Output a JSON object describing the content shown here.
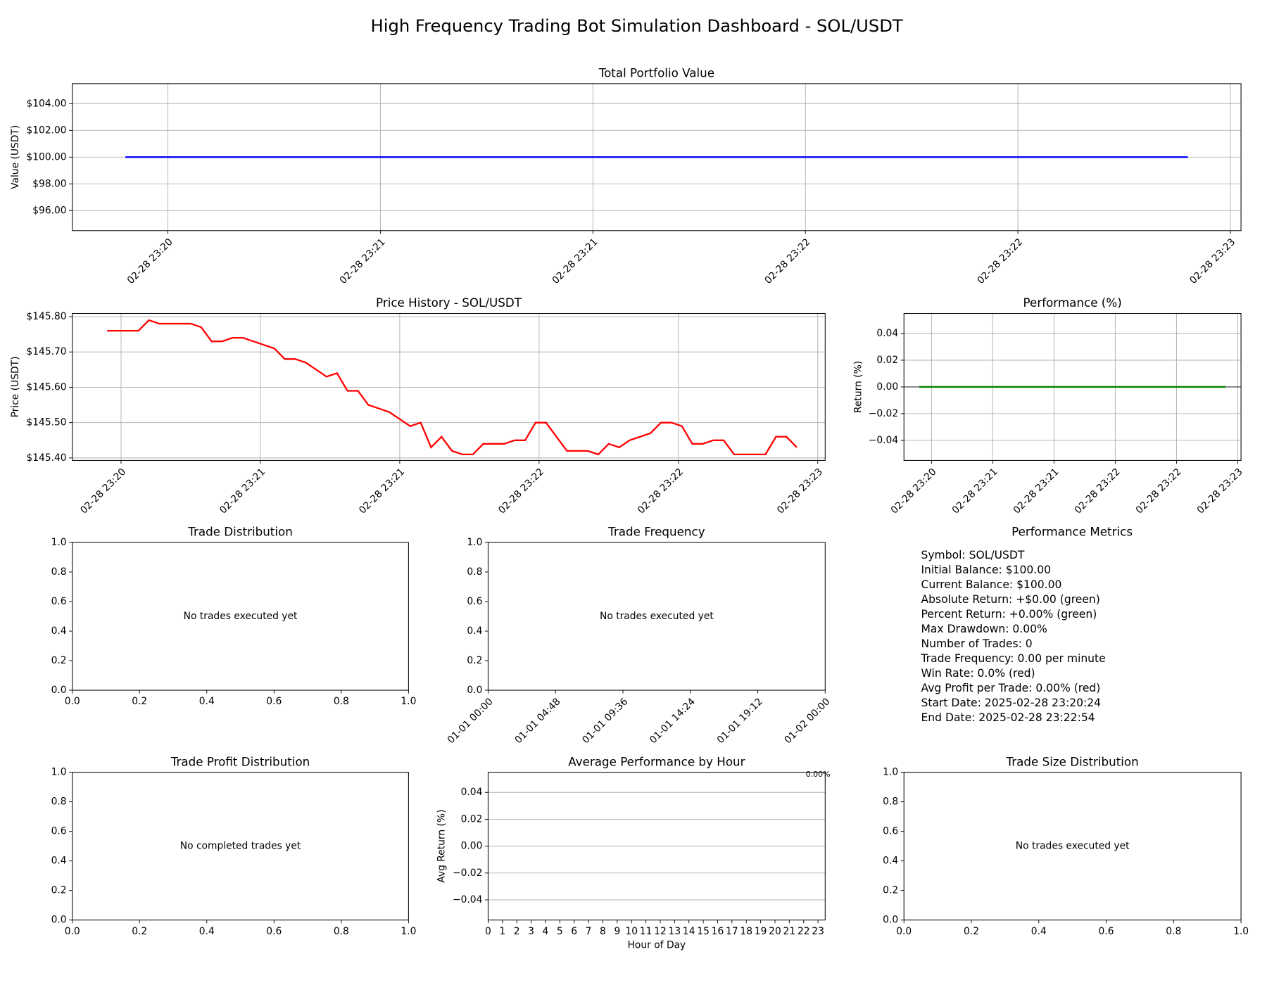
{
  "title": "High Frequency Trading Bot Simulation Dashboard - SOL/USDT",
  "chart_data": [
    {
      "type": "line",
      "title": "Total Portfolio Value",
      "ylabel": "Value (USDT)",
      "x": [
        "02-28 23:20:24",
        "02-28 23:22:54"
      ],
      "values": [
        100,
        100
      ],
      "color": "#0000ff",
      "xlim": [
        "02-28 23:20:16.5",
        "02-28 23:23:01.5"
      ],
      "ylim": [
        94.5,
        105.5
      ],
      "xticks": [
        {
          "value": "02-28 23:20:30",
          "label": "02-28 23:20"
        },
        {
          "value": "02-28 23:21:00",
          "label": "02-28 23:21"
        },
        {
          "value": "02-28 23:21:30",
          "label": "02-28 23:21"
        },
        {
          "value": "02-28 23:22:00",
          "label": "02-28 23:22"
        },
        {
          "value": "02-28 23:22:30",
          "label": "02-28 23:22"
        },
        {
          "value": "02-28 23:23:00",
          "label": "02-28 23:23"
        }
      ],
      "yticks": [
        {
          "value": 96,
          "label": "$96.00"
        },
        {
          "value": 98,
          "label": "$98.00"
        },
        {
          "value": 100,
          "label": "$100.00"
        },
        {
          "value": 102,
          "label": "$102.00"
        },
        {
          "value": 104,
          "label": "$104.00"
        }
      ],
      "xtick_rotation": 45,
      "grid": true
    },
    {
      "type": "line",
      "title": "Price History - SOL/USDT",
      "ylabel": "Price (USDT)",
      "x": [
        "02-28 23:20:27",
        "02-28 23:20:29.25",
        "02-28 23:20:31.5",
        "02-28 23:20:33.75",
        "02-28 23:20:36",
        "02-28 23:20:38.25",
        "02-28 23:20:40.5",
        "02-28 23:20:42.75",
        "02-28 23:20:45",
        "02-28 23:20:47.25",
        "02-28 23:20:49.5",
        "02-28 23:20:51.75",
        "02-28 23:20:54",
        "02-28 23:20:56.25",
        "02-28 23:20:58.5",
        "02-28 23:21:00.75",
        "02-28 23:21:03",
        "02-28 23:21:05.25",
        "02-28 23:21:07.5",
        "02-28 23:21:09.75",
        "02-28 23:21:12",
        "02-28 23:21:14.25",
        "02-28 23:21:16.5",
        "02-28 23:21:18.75",
        "02-28 23:21:21",
        "02-28 23:21:23.25",
        "02-28 23:21:25.5",
        "02-28 23:21:27.75",
        "02-28 23:21:30",
        "02-28 23:21:32.25",
        "02-28 23:21:34.5",
        "02-28 23:21:36.75",
        "02-28 23:21:39",
        "02-28 23:21:41.25",
        "02-28 23:21:43.5",
        "02-28 23:21:45.75",
        "02-28 23:21:48",
        "02-28 23:21:50.25",
        "02-28 23:21:52.5",
        "02-28 23:21:54.75",
        "02-28 23:21:57",
        "02-28 23:21:59.25",
        "02-28 23:22:01.5",
        "02-28 23:22:03.75",
        "02-28 23:22:06",
        "02-28 23:22:08.25",
        "02-28 23:22:10.5",
        "02-28 23:22:12.75",
        "02-28 23:22:15",
        "02-28 23:22:17.25",
        "02-28 23:22:19.5",
        "02-28 23:22:21.75",
        "02-28 23:22:24",
        "02-28 23:22:26.25",
        "02-28 23:22:28.5",
        "02-28 23:22:30.75",
        "02-28 23:22:33",
        "02-28 23:22:35.25",
        "02-28 23:22:37.5",
        "02-28 23:22:39.75",
        "02-28 23:22:42",
        "02-28 23:22:44.25",
        "02-28 23:22:46.5",
        "02-28 23:22:48.75",
        "02-28 23:22:51",
        "02-28 23:22:53.25",
        "02-28 23:22:55.5"
      ],
      "values": [
        145.76,
        145.76,
        145.76,
        145.76,
        145.79,
        145.78,
        145.78,
        145.78,
        145.78,
        145.77,
        145.73,
        145.73,
        145.74,
        145.74,
        145.73,
        145.72,
        145.71,
        145.68,
        145.68,
        145.67,
        145.65,
        145.63,
        145.64,
        145.59,
        145.59,
        145.55,
        145.54,
        145.53,
        145.51,
        145.49,
        145.5,
        145.43,
        145.46,
        145.42,
        145.41,
        145.41,
        145.44,
        145.44,
        145.44,
        145.45,
        145.45,
        145.5,
        145.5,
        145.46,
        145.42,
        145.42,
        145.42,
        145.41,
        145.44,
        145.43,
        145.45,
        145.46,
        145.47,
        145.5,
        145.5,
        145.49,
        145.44,
        145.44,
        145.45,
        145.45,
        145.41,
        145.41,
        145.41,
        145.41,
        145.46,
        145.46,
        145.43
      ],
      "color": "#ff0000",
      "xlim": [
        "02-28 23:20:19.5",
        "02-28 23:23:01.6"
      ],
      "ylim": [
        145.393,
        145.809
      ],
      "xticks": [
        {
          "value": "02-28 23:20:30",
          "label": "02-28 23:20"
        },
        {
          "value": "02-28 23:21:00",
          "label": "02-28 23:21"
        },
        {
          "value": "02-28 23:21:30",
          "label": "02-28 23:21"
        },
        {
          "value": "02-28 23:22:00",
          "label": "02-28 23:22"
        },
        {
          "value": "02-28 23:22:30",
          "label": "02-28 23:22"
        },
        {
          "value": "02-28 23:23:00",
          "label": "02-28 23:23"
        }
      ],
      "yticks": [
        {
          "value": 145.4,
          "label": "$145.40"
        },
        {
          "value": 145.5,
          "label": "$145.50"
        },
        {
          "value": 145.6,
          "label": "$145.60"
        },
        {
          "value": 145.7,
          "label": "$145.70"
        },
        {
          "value": 145.8,
          "label": "$145.80"
        }
      ],
      "xtick_rotation": 45,
      "grid": true
    },
    {
      "type": "line",
      "title": "Performance (%)",
      "ylabel": "Return (%)",
      "x": [
        "02-28 23:20:24",
        "02-28 23:22:54"
      ],
      "values": [
        0,
        0
      ],
      "color": "#008000",
      "reference_line": 0,
      "xlim": [
        "02-28 23:20:16.5",
        "02-28 23:23:01.6"
      ],
      "ylim": [
        -0.055,
        0.055
      ],
      "xticks": [
        {
          "value": "02-28 23:20:30",
          "label": "02-28 23:20"
        },
        {
          "value": "02-28 23:21:00",
          "label": "02-28 23:21"
        },
        {
          "value": "02-28 23:21:30",
          "label": "02-28 23:21"
        },
        {
          "value": "02-28 23:22:00",
          "label": "02-28 23:22"
        },
        {
          "value": "02-28 23:22:30",
          "label": "02-28 23:22"
        },
        {
          "value": "02-28 23:23:00",
          "label": "02-28 23:23"
        }
      ],
      "yticks": [
        {
          "value": -0.04,
          "label": "−0.04"
        },
        {
          "value": -0.02,
          "label": "−0.02"
        },
        {
          "value": 0,
          "label": "0.00"
        },
        0.02,
        0.04
      ],
      "xtick_rotation": 45,
      "grid": true
    },
    {
      "type": "empty",
      "title": "Trade Distribution",
      "annotation": "No trades executed yet",
      "xlim": [
        0,
        1
      ],
      "ylim": [
        0,
        1
      ],
      "xticks": [
        {
          "value": 0,
          "label": "0.0"
        },
        0.2,
        0.4,
        0.6,
        0.8,
        {
          "value": 1,
          "label": "1.0"
        }
      ],
      "yticks": [
        {
          "value": 0,
          "label": "0.0"
        },
        0.2,
        0.4,
        0.6,
        0.8,
        {
          "value": 1,
          "label": "1.0"
        }
      ]
    },
    {
      "type": "empty",
      "title": "Trade Frequency",
      "annotation": "No trades executed yet",
      "xlim": [
        "01-01 00:00",
        "01-02 00:00"
      ],
      "ylim": [
        0,
        1
      ],
      "xticks": [
        "01-01 00:00",
        "01-01 04:48",
        "01-01 09:36",
        "01-01 14:24",
        "01-01 19:12",
        "01-02 00:00"
      ],
      "yticks": [
        {
          "value": 0,
          "label": "0.0"
        },
        0.2,
        0.4,
        0.6,
        0.8,
        {
          "value": 1,
          "label": "1.0"
        }
      ],
      "xtick_rotation": 45
    },
    {
      "type": "empty",
      "title": "Trade Profit Distribution",
      "annotation": "No completed trades yet",
      "xlim": [
        0,
        1
      ],
      "ylim": [
        0,
        1
      ],
      "xticks": [
        {
          "value": 0,
          "label": "0.0"
        },
        0.2,
        0.4,
        0.6,
        0.8,
        {
          "value": 1,
          "label": "1.0"
        }
      ],
      "yticks": [
        {
          "value": 0,
          "label": "0.0"
        },
        0.2,
        0.4,
        0.6,
        0.8,
        {
          "value": 1,
          "label": "1.0"
        }
      ]
    },
    {
      "type": "bar",
      "title": "Average Performance by Hour",
      "xlabel": "Hour of Day",
      "ylabel": "Avg Return (%)",
      "x": [
        23
      ],
      "values": [
        0
      ],
      "value_labels": [
        "0.00%"
      ],
      "xlim": [
        0,
        23.5
      ],
      "ylim": [
        -0.055,
        0.055
      ],
      "xticks": [
        0,
        1,
        2,
        3,
        4,
        5,
        6,
        7,
        8,
        9,
        10,
        11,
        12,
        13,
        14,
        15,
        16,
        17,
        18,
        19,
        20,
        21,
        22,
        23
      ],
      "yticks": [
        {
          "value": -0.04,
          "label": "−0.04"
        },
        {
          "value": -0.02,
          "label": "−0.02"
        },
        {
          "value": 0,
          "label": "0.00"
        },
        0.02,
        0.04
      ],
      "grid": "y"
    },
    {
      "type": "empty",
      "title": "Trade Size Distribution",
      "annotation": "No trades executed yet",
      "xlim": [
        0,
        1
      ],
      "ylim": [
        0,
        1
      ],
      "xticks": [
        {
          "value": 0,
          "label": "0.0"
        },
        0.2,
        0.4,
        0.6,
        0.8,
        {
          "value": 1,
          "label": "1.0"
        }
      ],
      "yticks": [
        {
          "value": 0,
          "label": "0.0"
        },
        0.2,
        0.4,
        0.6,
        0.8,
        {
          "value": 1,
          "label": "1.0"
        }
      ]
    }
  ],
  "metrics": {
    "title": "Performance Metrics",
    "lines": [
      "Symbol: SOL/USDT",
      "Initial Balance: $100.00",
      "Current Balance: $100.00",
      "Absolute Return: +$0.00 (green)",
      "Percent Return: +0.00% (green)",
      "Max Drawdown: 0.00%",
      "Number of Trades: 0",
      "Trade Frequency: 0.00 per minute",
      "Win Rate: 0.0% (red)",
      "Avg Profit per Trade: 0.00% (red)",
      "Start Date: 2025-02-28 23:20:24",
      "End Date: 2025-02-28 23:22:54"
    ]
  }
}
